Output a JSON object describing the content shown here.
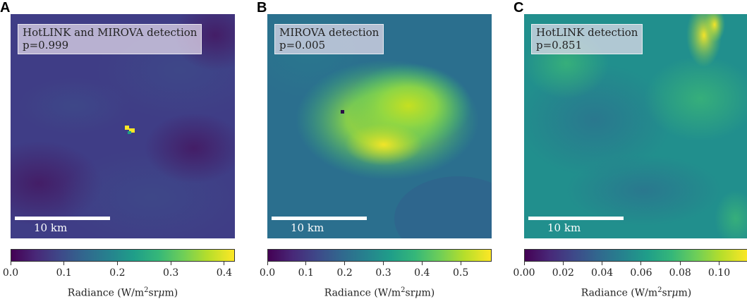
{
  "panels": [
    {
      "letter": "A",
      "label_line1": "HotLINK and MIROVA detection",
      "label_line2": "p=0.999",
      "scale": "10 km",
      "colorbar": {
        "ticks": [
          "0.0",
          "0.1",
          "0.2",
          "0.3",
          "0.4"
        ],
        "max": 0.42,
        "label": "Radiance (W/m²srμm)"
      }
    },
    {
      "letter": "B",
      "label_line1": "MIROVA detection",
      "label_line2": "p=0.005",
      "scale": "10 km",
      "colorbar": {
        "ticks": [
          "0.0",
          "0.1",
          "0.2",
          "0.3",
          "0.4",
          "0.5"
        ],
        "max": 0.58,
        "label": "Radiance (W/m²srμm)"
      }
    },
    {
      "letter": "C",
      "label_line1": "HotLINK detection",
      "label_line2": "p=0.851",
      "scale": "10 km",
      "colorbar": {
        "ticks": [
          "0.00",
          "0.02",
          "0.04",
          "0.06",
          "0.08",
          "0.10"
        ],
        "max": 0.115,
        "label": "Radiance (W/m²srμm)"
      }
    }
  ],
  "colors": {
    "viridis_low": "#440154",
    "viridis_high": "#fde725"
  }
}
